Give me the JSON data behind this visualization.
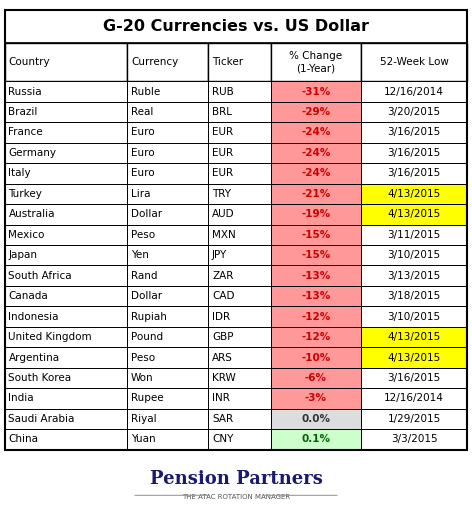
{
  "title": "G-20 Currencies vs. US Dollar",
  "col_headers": [
    "Country",
    "Currency",
    "Ticker",
    "% Change\n(1-Year)",
    "52-Week Low"
  ],
  "rows": [
    [
      "Russia",
      "Ruble",
      "RUB",
      "-31%",
      "12/16/2014"
    ],
    [
      "Brazil",
      "Real",
      "BRL",
      "-29%",
      "3/20/2015"
    ],
    [
      "France",
      "Euro",
      "EUR",
      "-24%",
      "3/16/2015"
    ],
    [
      "Germany",
      "Euro",
      "EUR",
      "-24%",
      "3/16/2015"
    ],
    [
      "Italy",
      "Euro",
      "EUR",
      "-24%",
      "3/16/2015"
    ],
    [
      "Turkey",
      "Lira",
      "TRY",
      "-21%",
      "4/13/2015"
    ],
    [
      "Australia",
      "Dollar",
      "AUD",
      "-19%",
      "4/13/2015"
    ],
    [
      "Mexico",
      "Peso",
      "MXN",
      "-15%",
      "3/11/2015"
    ],
    [
      "Japan",
      "Yen",
      "JPY",
      "-15%",
      "3/10/2015"
    ],
    [
      "South Africa",
      "Rand",
      "ZAR",
      "-13%",
      "3/13/2015"
    ],
    [
      "Canada",
      "Dollar",
      "CAD",
      "-13%",
      "3/18/2015"
    ],
    [
      "Indonesia",
      "Rupiah",
      "IDR",
      "-12%",
      "3/10/2015"
    ],
    [
      "United Kingdom",
      "Pound",
      "GBP",
      "-12%",
      "4/13/2015"
    ],
    [
      "Argentina",
      "Peso",
      "ARS",
      "-10%",
      "4/13/2015"
    ],
    [
      "South Korea",
      "Won",
      "KRW",
      "-6%",
      "3/16/2015"
    ],
    [
      "India",
      "Rupee",
      "INR",
      "-3%",
      "12/16/2014"
    ],
    [
      "Saudi Arabia",
      "Riyal",
      "SAR",
      "0.0%",
      "1/29/2015"
    ],
    [
      "China",
      "Yuan",
      "CNY",
      "0.1%",
      "3/3/2015"
    ]
  ],
  "pct_change_colors": [
    "#FF9999",
    "#FF9999",
    "#FF9999",
    "#FF9999",
    "#FF9999",
    "#FF9999",
    "#FF9999",
    "#FF9999",
    "#FF9999",
    "#FF9999",
    "#FF9999",
    "#FF9999",
    "#FF9999",
    "#FF9999",
    "#FF9999",
    "#FF9999",
    "#DDDDDD",
    "#CCFFCC"
  ],
  "week_low_colors": [
    "#FFFFFF",
    "#FFFFFF",
    "#FFFFFF",
    "#FFFFFF",
    "#FFFFFF",
    "#FFFF00",
    "#FFFF00",
    "#FFFFFF",
    "#FFFFFF",
    "#FFFFFF",
    "#FFFFFF",
    "#FFFFFF",
    "#FFFF00",
    "#FFFF00",
    "#FFFFFF",
    "#FFFFFF",
    "#FFFFFF",
    "#FFFFFF"
  ],
  "pct_text_colors": [
    "#CC0000",
    "#CC0000",
    "#CC0000",
    "#CC0000",
    "#CC0000",
    "#CC0000",
    "#CC0000",
    "#CC0000",
    "#CC0000",
    "#CC0000",
    "#CC0000",
    "#CC0000",
    "#CC0000",
    "#CC0000",
    "#CC0000",
    "#CC0000",
    "#333333",
    "#006600"
  ],
  "background_color": "#FFFFFF",
  "footer_text": "Pension Partners",
  "footer_subtext": "THE ATAC ROTATION MANAGER"
}
